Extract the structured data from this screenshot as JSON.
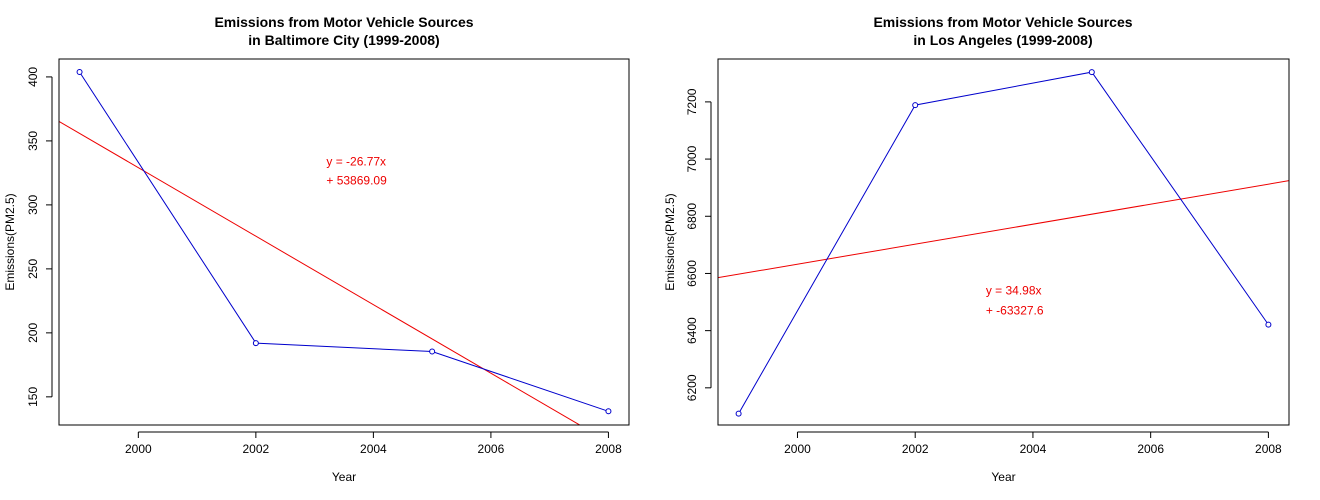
{
  "colors": {
    "series": "#0000cc",
    "fit": "#ee0000",
    "axis": "#000000",
    "background": "#ffffff"
  },
  "chart_data": [
    {
      "type": "line",
      "title": "Emissions from Motor Vehicle Sources",
      "subtitle": "in Baltimore City (1999-2008)",
      "xlabel": "Year",
      "ylabel": "Emissions(PM2.5)",
      "xlim": [
        1998.65,
        2008.35
      ],
      "ylim": [
        128,
        414
      ],
      "xticks": [
        2000,
        2002,
        2004,
        2006,
        2008
      ],
      "yticks": [
        150,
        200,
        250,
        300,
        350,
        400
      ],
      "grid": false,
      "legend": "none",
      "series": [
        {
          "x": [
            1999,
            2002,
            2005,
            2008
          ],
          "y": [
            403.8,
            192.0,
            185.4,
            138.7
          ],
          "marker": "open-circle"
        }
      ],
      "fit_line": {
        "slope": -26.77,
        "intercept": 53869.09
      },
      "annotation": {
        "line1": "y = -26.77x",
        "line2": "+ 53869.09",
        "x": 2003.2,
        "y1": 334,
        "y2": 319
      }
    },
    {
      "type": "line",
      "title": "Emissions from Motor Vehicle Sources",
      "subtitle": "in Los Angeles (1999-2008)",
      "xlabel": "Year",
      "ylabel": "Emissions(PM2.5)",
      "xlim": [
        1998.65,
        2008.35
      ],
      "ylim": [
        6070,
        7350
      ],
      "xticks": [
        2000,
        2002,
        2004,
        2006,
        2008
      ],
      "yticks": [
        6200,
        6400,
        6600,
        6800,
        7000,
        7200
      ],
      "grid": false,
      "legend": "none",
      "series": [
        {
          "x": [
            1999,
            2002,
            2005,
            2008
          ],
          "y": [
            6109.7,
            7188.7,
            7304.1,
            6421.0
          ],
          "marker": "open-circle"
        }
      ],
      "fit_line": {
        "slope": 34.98,
        "intercept": -63327.6
      },
      "annotation": {
        "line1": "y = 34.98x",
        "line2": "+ -63327.6",
        "x": 2003.2,
        "y1": 6540,
        "y2": 6470
      }
    }
  ]
}
